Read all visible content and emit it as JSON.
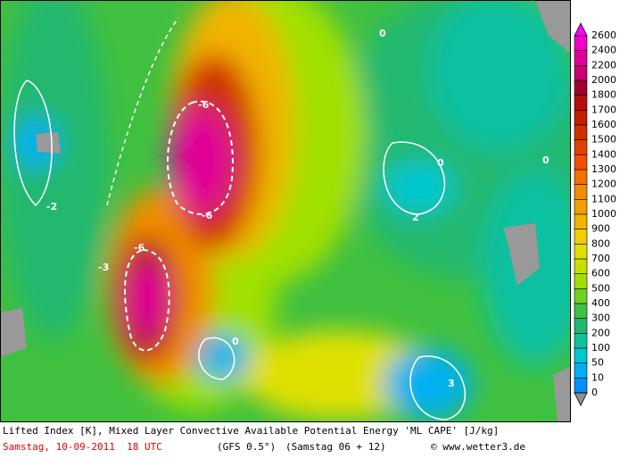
{
  "map": {
    "contour_labels": [
      "-6",
      "-6",
      "-6",
      "-3",
      "0",
      "0",
      "0",
      "3",
      "0",
      "2",
      "-2"
    ]
  },
  "legend": {
    "labels": [
      2600,
      2400,
      2200,
      2000,
      1800,
      1700,
      1600,
      1500,
      1400,
      1300,
      1200,
      1100,
      1000,
      900,
      800,
      700,
      600,
      500,
      400,
      300,
      200,
      100,
      50,
      10,
      0
    ],
    "colors": [
      "#f000c8",
      "#e00098",
      "#c80070",
      "#a00030",
      "#b01010",
      "#c02000",
      "#d03000",
      "#e04000",
      "#f05000",
      "#f07000",
      "#f08c00",
      "#f0a000",
      "#f0b400",
      "#f0cc00",
      "#e0e000",
      "#c8e000",
      "#a0e000",
      "#70d020",
      "#40c040",
      "#20b870",
      "#10c0a0",
      "#00c8d0",
      "#00b0f0",
      "#0090ff"
    ]
  },
  "footer": {
    "description": "Lifted Index [K], Mixed Layer Convective Available Potential Energy 'ML CAPE' [J/kg]",
    "date": "Samstag, 10-09-2011  18 UTC",
    "model": "(GFS 0.5°)",
    "run": "(Samstag 06 + 12)",
    "credit": "© www.wetter3.de"
  }
}
